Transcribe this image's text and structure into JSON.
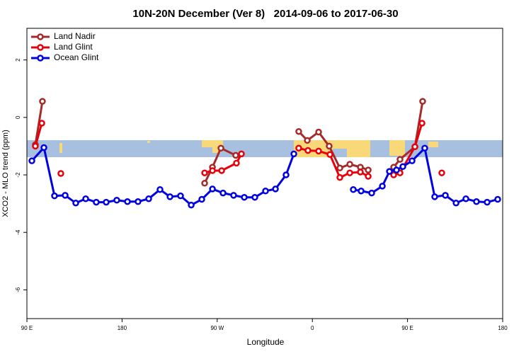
{
  "chart_data": {
    "type": "line",
    "title": "10N-20N December (Ver 8)   2014-09-06 to 2017-06-30",
    "xlabel": "Longitude",
    "ylabel": "XCO2 - MLO trend (ppm)",
    "xlim": [
      90,
      540
    ],
    "ylim": [
      -7,
      3.1
    ],
    "xticks": [
      {
        "value": 90,
        "label": "90 E"
      },
      {
        "value": 180,
        "label": "180"
      },
      {
        "value": 270,
        "label": "90 W"
      },
      {
        "value": 360,
        "label": "0"
      },
      {
        "value": 450,
        "label": "90 E"
      },
      {
        "value": 540,
        "label": "180"
      }
    ],
    "yticks": [
      2,
      0,
      -2,
      -4,
      -6
    ],
    "legend": "top-left",
    "series": [
      {
        "name": "Land Nadir",
        "color": "#a52a2a",
        "x": [
          98.0,
          104.7,
          null,
          258.1,
          265.5,
          273.5,
          287.5,
          null,
          347.1,
          355.2,
          365.9,
          375.9,
          386.0,
          395.4,
          405.4,
          412.8,
          null,
          436.9,
          442.9,
          457.0,
          464.3
        ],
        "values": [
          -0.95,
          0.56,
          null,
          -2.29,
          -1.73,
          -1.07,
          -1.32,
          null,
          -0.49,
          -0.8,
          -0.51,
          -1.0,
          -1.76,
          -1.63,
          -1.73,
          -1.83,
          null,
          -1.73,
          -1.46,
          -1.02,
          0.56
        ]
      },
      {
        "name": "Land Glint",
        "color": "#e8000b",
        "x": [
          98.0,
          104.1,
          null,
          122.1,
          null,
          258.1,
          265.5,
          274.2,
          288.2,
          292.9,
          null,
          347.1,
          355.8,
          365.9,
          376.6,
          386.0,
          395.4,
          405.4,
          412.8,
          null,
          436.9,
          442.9,
          457.0,
          463.7,
          null,
          482.4
        ],
        "values": [
          -1.0,
          -0.2,
          null,
          -1.95,
          null,
          -1.93,
          -1.85,
          -1.85,
          -1.59,
          -1.27,
          null,
          -1.07,
          -1.15,
          -1.17,
          -1.29,
          -2.09,
          -1.93,
          -1.9,
          -2.05,
          null,
          -2.0,
          -1.93,
          -1.02,
          -0.2,
          null,
          -1.93
        ]
      },
      {
        "name": "Ocean Glint",
        "color": "#0000e0",
        "x": [
          94.7,
          106.1,
          116.1,
          126.2,
          136.2,
          145.6,
          155.6,
          165.0,
          175.0,
          185.1,
          195.1,
          205.2,
          215.9,
          225.3,
          235.3,
          245.4,
          255.4,
          265.5,
          275.5,
          285.5,
          295.6,
          305.6,
          315.7,
          325.1,
          335.1,
          342.5,
          null,
          398.7,
          406.1,
          416.1,
          426.2,
          432.9,
          439.6,
          445.6,
          454.3,
          466.3,
          475.7,
          485.8,
          495.9,
          505.2,
          515.2,
          525.3,
          535.3
        ],
        "values": [
          -1.51,
          -1.05,
          -2.73,
          -2.71,
          -2.98,
          -2.83,
          -2.95,
          -2.95,
          -2.88,
          -2.93,
          -2.93,
          -2.83,
          -2.51,
          -2.76,
          -2.73,
          -3.05,
          -2.85,
          -2.49,
          -2.63,
          -2.71,
          -2.78,
          -2.78,
          -2.56,
          -2.49,
          -2.0,
          -1.27,
          null,
          -2.51,
          -2.56,
          -2.63,
          -2.39,
          -1.88,
          -1.83,
          -1.71,
          -1.51,
          -1.07,
          -2.76,
          -2.71,
          -2.98,
          -2.83,
          -2.93,
          -2.95,
          -2.85
        ]
      }
    ]
  }
}
